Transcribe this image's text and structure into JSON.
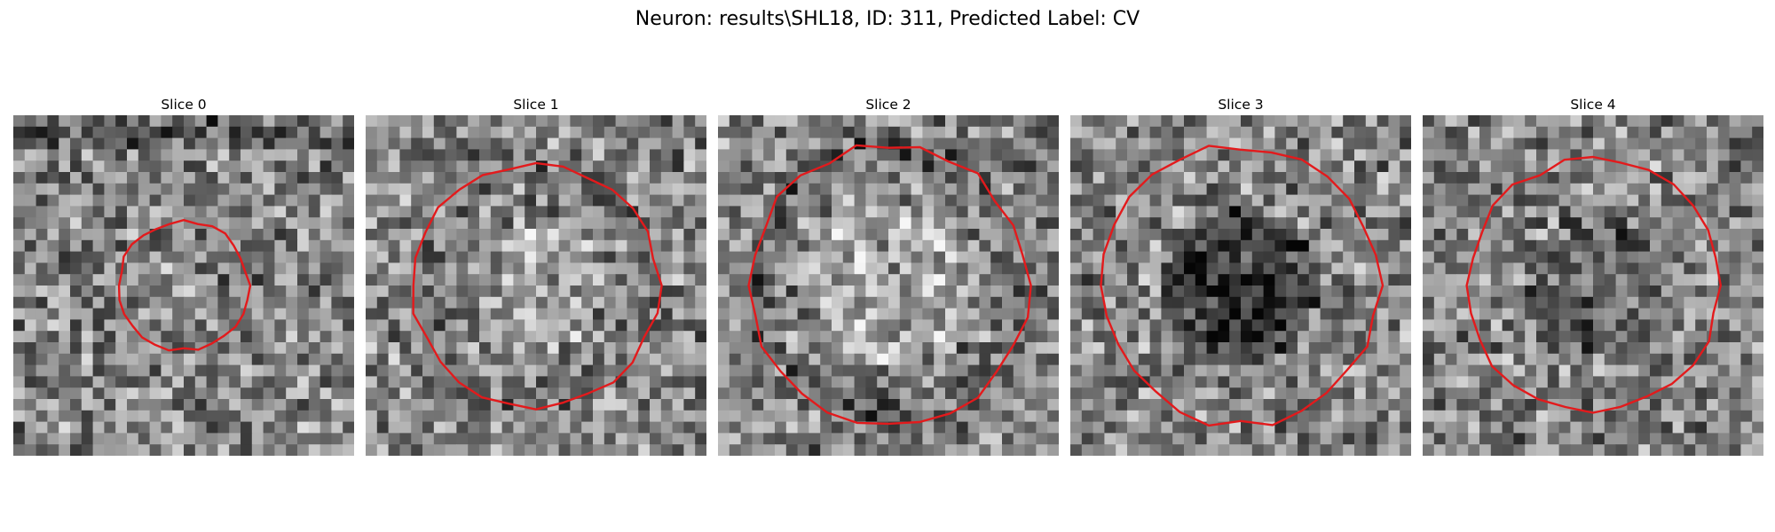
{
  "figure": {
    "title": "Neuron: results\\SHL18, ID: 311, Predicted Label: CV"
  },
  "panels": [
    {
      "title": "Slice 0",
      "roi_radius": 0.19
    },
    {
      "title": "Slice 1",
      "roi_radius": 0.36
    },
    {
      "title": "Slice 2",
      "roi_radius": 0.41
    },
    {
      "title": "Slice 3",
      "roi_radius": 0.41
    },
    {
      "title": "Slice 4",
      "roi_radius": 0.37
    }
  ],
  "colors": {
    "roi_outline": "#e31a1c",
    "background": "#ffffff"
  },
  "image": {
    "colormap": "gray",
    "grid": 30
  }
}
